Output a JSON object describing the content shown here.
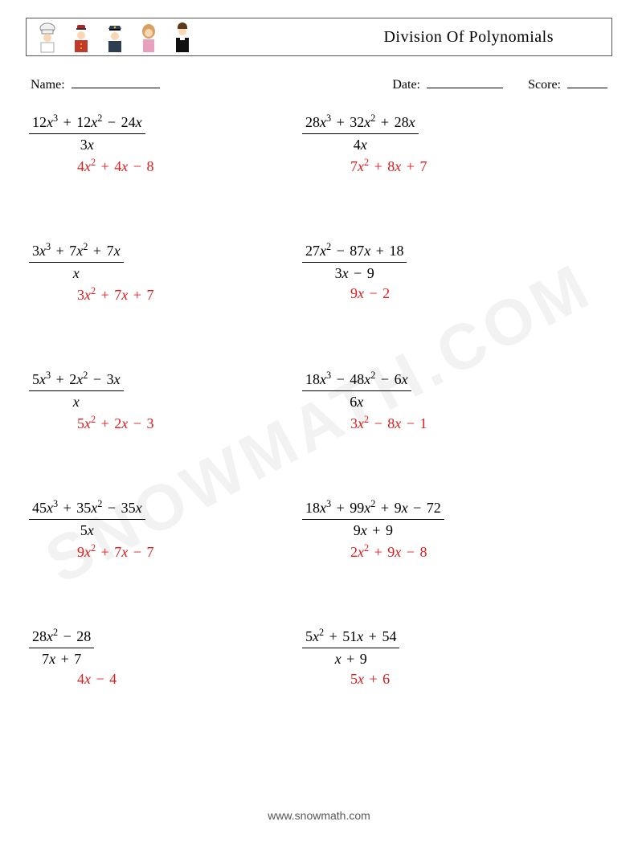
{
  "header": {
    "title": "Division Of Polynomials",
    "title_fontsize": 20,
    "border_color": "#555555",
    "icons": [
      "chef-icon",
      "bellhop-icon",
      "police-icon",
      "woman-icon",
      "priest-icon"
    ]
  },
  "fields": {
    "name_label": "Name:",
    "name_underline_width": 110,
    "date_label": "Date:",
    "date_underline_width": 95,
    "score_label": "Score:",
    "score_underline_width": 50
  },
  "colors": {
    "text": "#000000",
    "answer": "#e11a1a",
    "watermark": "#f2f2f2",
    "footer": "#555555",
    "background": "#ffffff"
  },
  "typography": {
    "body_font": "Georgia, 'Times New Roman', serif",
    "expr_fontsize": 18,
    "field_fontsize": 16
  },
  "watermark": {
    "text": "SNOWMATH.COM",
    "rotation_deg": -28,
    "fontsize": 80
  },
  "footer": {
    "text": "www.snowmath.com"
  },
  "columns": {
    "left": [
      {
        "numerator": [
          [
            "12"
          ],
          [
            "x",
            3
          ],
          [
            "+"
          ],
          [
            "12"
          ],
          [
            "x",
            2
          ],
          [
            "−"
          ],
          [
            "24"
          ],
          [
            "x"
          ]
        ],
        "denominator": [
          [
            "3"
          ],
          [
            "x"
          ]
        ],
        "answer": [
          [
            "4"
          ],
          [
            "x",
            2
          ],
          [
            "+"
          ],
          [
            "4"
          ],
          [
            "x"
          ],
          [
            "−"
          ],
          [
            "8"
          ]
        ]
      },
      {
        "numerator": [
          [
            "3"
          ],
          [
            "x",
            3
          ],
          [
            "+"
          ],
          [
            "7"
          ],
          [
            "x",
            2
          ],
          [
            "+"
          ],
          [
            "7"
          ],
          [
            "x"
          ]
        ],
        "denominator": [
          [
            "x"
          ]
        ],
        "answer": [
          [
            "3"
          ],
          [
            "x",
            2
          ],
          [
            "+"
          ],
          [
            "7"
          ],
          [
            "x"
          ],
          [
            "+"
          ],
          [
            "7"
          ]
        ]
      },
      {
        "numerator": [
          [
            "5"
          ],
          [
            "x",
            3
          ],
          [
            "+"
          ],
          [
            "2"
          ],
          [
            "x",
            2
          ],
          [
            "−"
          ],
          [
            "3"
          ],
          [
            "x"
          ]
        ],
        "denominator": [
          [
            "x"
          ]
        ],
        "answer": [
          [
            "5"
          ],
          [
            "x",
            2
          ],
          [
            "+"
          ],
          [
            "2"
          ],
          [
            "x"
          ],
          [
            "−"
          ],
          [
            "3"
          ]
        ]
      },
      {
        "numerator": [
          [
            "45"
          ],
          [
            "x",
            3
          ],
          [
            "+"
          ],
          [
            "35"
          ],
          [
            "x",
            2
          ],
          [
            "−"
          ],
          [
            "35"
          ],
          [
            "x"
          ]
        ],
        "denominator": [
          [
            "5"
          ],
          [
            "x"
          ]
        ],
        "answer": [
          [
            "9"
          ],
          [
            "x",
            2
          ],
          [
            "+"
          ],
          [
            "7"
          ],
          [
            "x"
          ],
          [
            "−"
          ],
          [
            "7"
          ]
        ]
      },
      {
        "numerator": [
          [
            "28"
          ],
          [
            "x",
            2
          ],
          [
            "−"
          ],
          [
            "28"
          ]
        ],
        "denominator": [
          [
            "7"
          ],
          [
            "x"
          ],
          [
            "+"
          ],
          [
            "7"
          ]
        ],
        "answer": [
          [
            "4"
          ],
          [
            "x"
          ],
          [
            "−"
          ],
          [
            "4"
          ]
        ]
      }
    ],
    "right": [
      {
        "numerator": [
          [
            "28"
          ],
          [
            "x",
            3
          ],
          [
            "+"
          ],
          [
            "32"
          ],
          [
            "x",
            2
          ],
          [
            "+"
          ],
          [
            "28"
          ],
          [
            "x"
          ]
        ],
        "denominator": [
          [
            "4"
          ],
          [
            "x"
          ]
        ],
        "answer": [
          [
            "7"
          ],
          [
            "x",
            2
          ],
          [
            "+"
          ],
          [
            "8"
          ],
          [
            "x"
          ],
          [
            "+"
          ],
          [
            "7"
          ]
        ]
      },
      {
        "numerator": [
          [
            "27"
          ],
          [
            "x",
            2
          ],
          [
            "−"
          ],
          [
            "87"
          ],
          [
            "x"
          ],
          [
            "+"
          ],
          [
            "18"
          ]
        ],
        "denominator": [
          [
            "3"
          ],
          [
            "x"
          ],
          [
            "−"
          ],
          [
            "9"
          ]
        ],
        "answer": [
          [
            "9"
          ],
          [
            "x"
          ],
          [
            "−"
          ],
          [
            "2"
          ]
        ]
      },
      {
        "numerator": [
          [
            "18"
          ],
          [
            "x",
            3
          ],
          [
            "−"
          ],
          [
            "48"
          ],
          [
            "x",
            2
          ],
          [
            "−"
          ],
          [
            "6"
          ],
          [
            "x"
          ]
        ],
        "denominator": [
          [
            "6"
          ],
          [
            "x"
          ]
        ],
        "answer": [
          [
            "3"
          ],
          [
            "x",
            2
          ],
          [
            "−"
          ],
          [
            "8"
          ],
          [
            "x"
          ],
          [
            "−"
          ],
          [
            "1"
          ]
        ]
      },
      {
        "numerator": [
          [
            "18"
          ],
          [
            "x",
            3
          ],
          [
            "+"
          ],
          [
            "99"
          ],
          [
            "x",
            2
          ],
          [
            "+"
          ],
          [
            "9"
          ],
          [
            "x"
          ],
          [
            "−"
          ],
          [
            "72"
          ]
        ],
        "denominator": [
          [
            "9"
          ],
          [
            "x"
          ],
          [
            "+"
          ],
          [
            "9"
          ]
        ],
        "answer": [
          [
            "2"
          ],
          [
            "x",
            2
          ],
          [
            "+"
          ],
          [
            "9"
          ],
          [
            "x"
          ],
          [
            "−"
          ],
          [
            "8"
          ]
        ]
      },
      {
        "numerator": [
          [
            "5"
          ],
          [
            "x",
            2
          ],
          [
            "+"
          ],
          [
            "51"
          ],
          [
            "x"
          ],
          [
            "+"
          ],
          [
            "54"
          ]
        ],
        "denominator": [
          [
            "x"
          ],
          [
            "+"
          ],
          [
            "9"
          ]
        ],
        "answer": [
          [
            "5"
          ],
          [
            "x"
          ],
          [
            "+"
          ],
          [
            "6"
          ]
        ]
      }
    ]
  }
}
